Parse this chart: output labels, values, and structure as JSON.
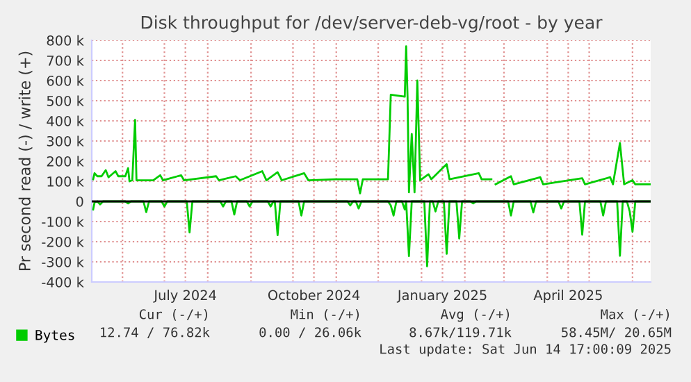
{
  "chart_data": {
    "type": "line",
    "title": "Disk throughput for /dev/server-deb-vg/root - by year",
    "ylabel": "Pr second read (-) / write (+)",
    "xlim": [
      "2024-05-10",
      "2025-06-14"
    ],
    "xticks": [
      {
        "value": "2024-06-01",
        "label": null
      },
      {
        "value": "2024-07-01",
        "label": null
      },
      {
        "value": "2024-07-16",
        "label": "July 2024"
      },
      {
        "value": "2024-08-01",
        "label": null
      },
      {
        "value": "2024-09-01",
        "label": null
      },
      {
        "value": "2024-10-01",
        "label": null
      },
      {
        "value": "2024-10-16",
        "label": "October 2024"
      },
      {
        "value": "2024-11-01",
        "label": null
      },
      {
        "value": "2024-12-01",
        "label": null
      },
      {
        "value": "2025-01-01",
        "label": null
      },
      {
        "value": "2025-01-16",
        "label": "January 2025"
      },
      {
        "value": "2025-02-01",
        "label": null
      },
      {
        "value": "2025-03-01",
        "label": null
      },
      {
        "value": "2025-04-01",
        "label": null
      },
      {
        "value": "2025-04-16",
        "label": "April 2025"
      },
      {
        "value": "2025-05-01",
        "label": null
      },
      {
        "value": "2025-06-01",
        "label": null
      }
    ],
    "ylim": [
      -400000,
      800000
    ],
    "yticks": [
      {
        "value": -400000,
        "label": "-400 k"
      },
      {
        "value": -300000,
        "label": "-300 k"
      },
      {
        "value": -200000,
        "label": "-200 k"
      },
      {
        "value": -100000,
        "label": "-100 k"
      },
      0,
      {
        "value": 100000,
        "label": "100 k"
      },
      {
        "value": 200000,
        "label": "200 k"
      },
      {
        "value": 300000,
        "label": "300 k"
      },
      {
        "value": 400000,
        "label": "400 k"
      },
      {
        "value": 500000,
        "label": "500 k"
      },
      {
        "value": 600000,
        "label": "600 k"
      },
      {
        "value": 700000,
        "label": "700 k"
      },
      {
        "value": 800000,
        "label": "800 k"
      }
    ],
    "grid": true,
    "legend": "bottom left",
    "marker": "none",
    "line_style": "solid",
    "ref_lines": [
      {
        "axis": "y",
        "value": 0,
        "color": "#000000"
      }
    ],
    "series": [
      {
        "name": "Bytes",
        "color": "#00cc00",
        "x": [
          "2024-05-11",
          "2024-05-12",
          "2024-05-14",
          "2024-05-17",
          "2024-05-20",
          "2024-05-22",
          "2024-05-27",
          "2024-05-29",
          "2024-06-03",
          "2024-06-05",
          "2024-06-06",
          "2024-06-08",
          "2024-06-10",
          "2024-06-11",
          "2024-06-23",
          "2024-06-28",
          "2024-06-30",
          "2024-07-13",
          "2024-07-15",
          "2024-08-07",
          "2024-08-09",
          "2024-08-21",
          "2024-08-24",
          "2024-09-09",
          "2024-09-12",
          "2024-09-20",
          "2024-09-23",
          "2024-10-09",
          "2024-10-12",
          "2024-10-31",
          "2024-11-16",
          "2024-11-18",
          "2024-11-20",
          "2024-12-08",
          "2024-12-10",
          "2024-12-20",
          "2024-12-21",
          "2024-12-22",
          "2024-12-23",
          "2024-12-25",
          "2024-12-27",
          "2024-12-29",
          "2024-12-31",
          "2025-01-06",
          "2025-01-08",
          "2025-01-19",
          "2025-01-21",
          "2025-02-11",
          "2025-02-13",
          "2025-02-20",
          "2025-02-21",
          "2025-02-23",
          "2025-03-06",
          "2025-03-08",
          "2025-03-27",
          "2025-03-29",
          "2025-04-26",
          "2025-04-28",
          "2025-05-16",
          "2025-05-18",
          "2025-05-23",
          "2025-05-26",
          "2025-06-01",
          "2025-06-03",
          "2025-06-14"
        ],
        "values": [
          110000,
          140000,
          125000,
          125000,
          155000,
          120000,
          150000,
          125000,
          125000,
          165000,
          100000,
          105000,
          405000,
          105000,
          105000,
          130000,
          105000,
          130000,
          105000,
          125000,
          105000,
          125000,
          105000,
          150000,
          105000,
          145000,
          105000,
          140000,
          105000,
          110000,
          110000,
          40000,
          110000,
          110000,
          530000,
          520000,
          770000,
          520000,
          45000,
          335000,
          45000,
          600000,
          105000,
          135000,
          110000,
          185000,
          110000,
          140000,
          110000,
          110000,
          null,
          85000,
          125000,
          85000,
          120000,
          85000,
          115000,
          85000,
          120000,
          85000,
          290000,
          85000,
          105000,
          85000,
          85000
        ]
      },
      {
        "color": "#00cc00",
        "x": [
          "2024-05-11",
          "2024-05-12",
          "2024-05-14",
          "2024-05-16",
          "2024-05-18",
          "2024-06-03",
          "2024-06-05",
          "2024-06-07",
          "2024-06-16",
          "2024-06-18",
          "2024-06-20",
          "2024-06-29",
          "2024-07-01",
          "2024-07-03",
          "2024-07-17",
          "2024-07-19",
          "2024-07-21",
          "2024-08-10",
          "2024-08-12",
          "2024-08-14",
          "2024-08-18",
          "2024-08-20",
          "2024-08-22",
          "2024-08-29",
          "2024-08-31",
          "2024-09-02",
          "2024-09-13",
          "2024-09-15",
          "2024-09-17",
          "2024-09-18",
          "2024-09-20",
          "2024-09-22",
          "2024-10-05",
          "2024-10-07",
          "2024-10-09",
          "2024-11-09",
          "2024-11-11",
          "2024-11-13",
          "2024-11-15",
          "2024-11-17",
          "2024-11-19",
          "2024-12-08",
          "2024-12-10",
          "2024-12-12",
          "2024-12-14",
          "2024-12-18",
          "2024-12-20",
          "2024-12-21",
          "2024-12-23",
          "2024-12-25",
          "2025-01-03",
          "2025-01-05",
          "2025-01-07",
          "2025-01-09",
          "2025-01-11",
          "2025-01-13",
          "2025-01-17",
          "2025-01-19",
          "2025-01-21",
          "2025-01-26",
          "2025-01-28",
          "2025-01-30",
          "2025-02-05",
          "2025-02-07",
          "2025-02-09",
          "2025-03-04",
          "2025-03-06",
          "2025-03-08",
          "2025-03-20",
          "2025-03-22",
          "2025-03-24",
          "2025-04-09",
          "2025-04-11",
          "2025-04-13",
          "2025-04-24",
          "2025-04-26",
          "2025-04-28",
          "2025-05-09",
          "2025-05-11",
          "2025-05-13",
          "2025-05-21",
          "2025-05-23",
          "2025-05-25",
          "2025-05-28",
          "2025-05-30",
          "2025-06-01",
          "2025-06-03",
          "2025-06-14"
        ],
        "values": [
          -40000,
          -5000,
          0,
          -15000,
          0,
          0,
          -10000,
          0,
          0,
          -53000,
          0,
          0,
          -25000,
          0,
          0,
          -154000,
          0,
          0,
          -25000,
          0,
          0,
          -65000,
          0,
          0,
          -25000,
          0,
          0,
          -25000,
          0,
          0,
          -168000,
          0,
          0,
          -70000,
          0,
          0,
          -20000,
          0,
          0,
          -35000,
          0,
          0,
          -20000,
          -70000,
          0,
          0,
          -40000,
          0,
          -271000,
          0,
          0,
          -322000,
          0,
          0,
          -50000,
          0,
          0,
          -260000,
          0,
          0,
          -184000,
          0,
          0,
          -10000,
          0,
          0,
          -70000,
          0,
          0,
          -55000,
          0,
          0,
          -35000,
          0,
          0,
          -165000,
          0,
          0,
          -70000,
          0,
          0,
          -270000,
          0,
          0,
          -50000,
          -150000,
          0,
          0
        ]
      }
    ],
    "annotations": [
      "Cur (-/+)",
      "Min (-/+)",
      "Avg (-/+)",
      "Max (-/+)",
      "12.74 / 76.82k",
      "0.00 / 26.06k",
      "8.67k/119.71k",
      "58.45M/ 20.65M",
      "Last update: Sat Jun 14 17:00:09 2025"
    ]
  }
}
